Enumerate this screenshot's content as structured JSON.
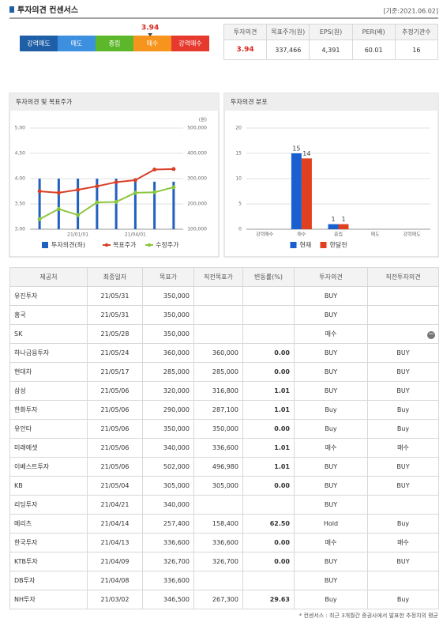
{
  "header": {
    "title": "투자의견 컨센서스",
    "date": "[기준:2021.06.02]"
  },
  "scale": {
    "labels": [
      "강력매도",
      "매도",
      "중립",
      "매수",
      "강력매수"
    ],
    "colors": [
      "#1f5fa8",
      "#3d8fe0",
      "#5cb82a",
      "#f7941d",
      "#e63a2e"
    ],
    "value": 3.94
  },
  "summary": {
    "columns": [
      "투자의견",
      "목표주가(원)",
      "EPS(원)",
      "PER(배)",
      "추정기관수"
    ],
    "values": [
      "3.94",
      "337,466",
      "4,391",
      "60.01",
      "16"
    ]
  },
  "chart_data": [
    {
      "type": "bar_line",
      "title": "투자의견 및 목표주가",
      "y2_unit": "(원)",
      "categories": [
        null,
        null,
        "21/01/01",
        null,
        null,
        "21/04/01",
        null,
        null
      ],
      "series": [
        {
          "name": "투자의견(좌)",
          "type": "bar",
          "color": "#2060c0",
          "values": [
            4.0,
            4.0,
            4.0,
            4.0,
            4.0,
            4.0,
            3.94,
            3.94
          ]
        },
        {
          "name": "목표주가",
          "type": "line",
          "axis": "y2",
          "color": "#d9402a",
          "values": [
            250000,
            244000,
            256000,
            270000,
            286000,
            294000,
            336000,
            338000
          ]
        },
        {
          "name": "수정주가",
          "type": "line",
          "axis": "y2",
          "color": "#8cc63f",
          "values": [
            140000,
            180000,
            156000,
            206000,
            208000,
            244000,
            246000,
            266000
          ]
        }
      ],
      "ylim": [
        3,
        5
      ],
      "yticks": [
        {
          "value": 3,
          "label": "3.00"
        },
        {
          "value": 3.5,
          "label": "3.50"
        },
        {
          "value": 4,
          "label": "4.00"
        },
        {
          "value": 4.5,
          "label": "4.50"
        },
        {
          "value": 5,
          "label": "5.00"
        }
      ],
      "y2lim": [
        100000,
        500000
      ],
      "y2ticks": [
        {
          "value": 100000,
          "label": "100,000"
        },
        {
          "value": 200000,
          "label": "200,000"
        },
        {
          "value": 300000,
          "label": "300,000"
        },
        {
          "value": 400000,
          "label": "400,000"
        },
        {
          "value": 500000,
          "label": "500,000"
        }
      ]
    },
    {
      "type": "bar",
      "title": "투자의견 분포",
      "categories": [
        "강력매수",
        "매수",
        "중립",
        "매도",
        "강력매도"
      ],
      "series": [
        {
          "name": "현재",
          "color": "#1a5fd0",
          "values": [
            0,
            15,
            1,
            0,
            0
          ]
        },
        {
          "name": "한달전",
          "color": "#e04020",
          "values": [
            0,
            14,
            1,
            0,
            0
          ]
        }
      ],
      "ylim": [
        0,
        20
      ],
      "yticks": [
        0,
        5,
        10,
        15,
        20
      ]
    }
  ],
  "table": {
    "columns": [
      "제공처",
      "최종일자",
      "목표가",
      "직전목표가",
      "변동률(%)",
      "투자의견",
      "직전투자의견"
    ],
    "rows": [
      [
        "유진투자",
        "21/05/31",
        "350,000",
        null,
        null,
        "BUY",
        null
      ],
      [
        "흥국",
        "21/05/31",
        "350,000",
        null,
        null,
        "BUY",
        null
      ],
      [
        "SK",
        "21/05/28",
        "350,000",
        null,
        null,
        "매수",
        null
      ],
      [
        "하나금융투자",
        "21/05/24",
        "360,000",
        "360,000",
        "0.00",
        "BUY",
        "BUY"
      ],
      [
        "현대차",
        "21/05/17",
        "285,000",
        "285,000",
        "0.00",
        "BUY",
        "BUY"
      ],
      [
        "삼성",
        "21/05/06",
        "320,000",
        "316,800",
        "1.01",
        "BUY",
        "BUY"
      ],
      [
        "한화투자",
        "21/05/06",
        "290,000",
        "287,100",
        "1.01",
        "Buy",
        "Buy"
      ],
      [
        "유안타",
        "21/05/06",
        "350,000",
        "350,000",
        "0.00",
        "Buy",
        "Buy"
      ],
      [
        "미래에셋",
        "21/05/06",
        "340,000",
        "336,600",
        "1.01",
        "매수",
        "매수"
      ],
      [
        "이베스트투자",
        "21/05/06",
        "502,000",
        "496,980",
        "1.01",
        "BUY",
        "BUY"
      ],
      [
        "KB",
        "21/05/04",
        "305,000",
        "305,000",
        "0.00",
        "BUY",
        "BUY"
      ],
      [
        "리딩투자",
        "21/04/21",
        "340,000",
        null,
        null,
        "BUY",
        null
      ],
      [
        "메리츠",
        "21/04/14",
        "257,400",
        "158,400",
        "62.50",
        "Hold",
        "Buy"
      ],
      [
        "한국투자",
        "21/04/13",
        "336,600",
        "336,600",
        "0.00",
        "매수",
        "매수"
      ],
      [
        "KTB투자",
        "21/04/09",
        "326,700",
        "326,700",
        "0.00",
        "BUY",
        "BUY"
      ],
      [
        "DB투자",
        "21/04/08",
        "336,600",
        null,
        null,
        "BUY",
        null
      ],
      [
        "NH투자",
        "21/03/02",
        "346,500",
        "267,300",
        "29.63",
        "Buy",
        "Buy"
      ]
    ]
  },
  "footnote": "* 컨센서스 : 최근 3개월간 증권사에서 발표한 추정치의 평균"
}
